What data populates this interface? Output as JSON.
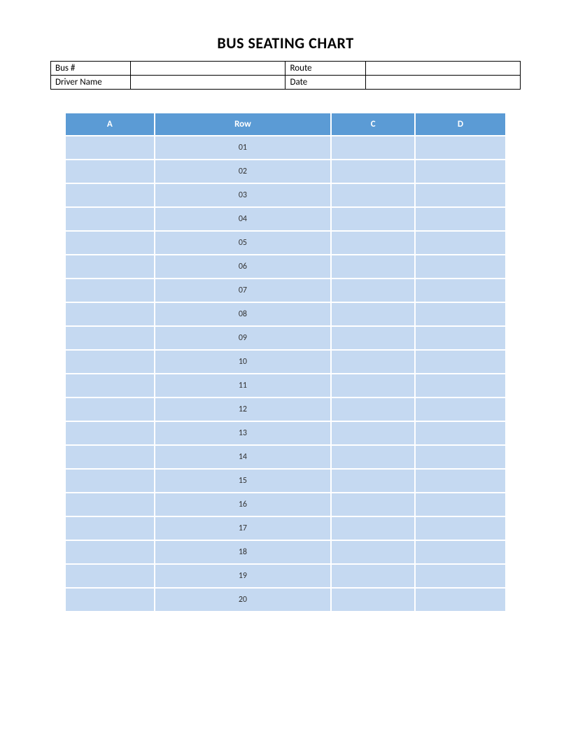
{
  "title": "BUS SEATING CHART",
  "info": {
    "labels": {
      "bus": "Bus #",
      "route": "Route",
      "driver": "Driver Name",
      "date": "Date"
    },
    "values": {
      "bus": "",
      "route": "",
      "driver": "",
      "date": ""
    }
  },
  "seating": {
    "type": "table",
    "columns": [
      "A",
      "Row",
      "C",
      "D"
    ],
    "header_bg_color": "#5b9bd5",
    "header_text_color": "#ffffff",
    "row_bg_color": "#c5d9f1",
    "row_text_color": "#333333",
    "column_count": 4,
    "rows": [
      {
        "a": "",
        "row": "01",
        "c": "",
        "d": ""
      },
      {
        "a": "",
        "row": "02",
        "c": "",
        "d": ""
      },
      {
        "a": "",
        "row": "03",
        "c": "",
        "d": ""
      },
      {
        "a": "",
        "row": "04",
        "c": "",
        "d": ""
      },
      {
        "a": "",
        "row": "05",
        "c": "",
        "d": ""
      },
      {
        "a": "",
        "row": "06",
        "c": "",
        "d": ""
      },
      {
        "a": "",
        "row": "07",
        "c": "",
        "d": ""
      },
      {
        "a": "",
        "row": "08",
        "c": "",
        "d": ""
      },
      {
        "a": "",
        "row": "09",
        "c": "",
        "d": ""
      },
      {
        "a": "",
        "row": "10",
        "c": "",
        "d": ""
      },
      {
        "a": "",
        "row": "11",
        "c": "",
        "d": ""
      },
      {
        "a": "",
        "row": "12",
        "c": "",
        "d": ""
      },
      {
        "a": "",
        "row": "13",
        "c": "",
        "d": ""
      },
      {
        "a": "",
        "row": "14",
        "c": "",
        "d": ""
      },
      {
        "a": "",
        "row": "15",
        "c": "",
        "d": ""
      },
      {
        "a": "",
        "row": "16",
        "c": "",
        "d": ""
      },
      {
        "a": "",
        "row": "17",
        "c": "",
        "d": ""
      },
      {
        "a": "",
        "row": "18",
        "c": "",
        "d": ""
      },
      {
        "a": "",
        "row": "19",
        "c": "",
        "d": ""
      },
      {
        "a": "",
        "row": "20",
        "c": "",
        "d": ""
      }
    ]
  }
}
